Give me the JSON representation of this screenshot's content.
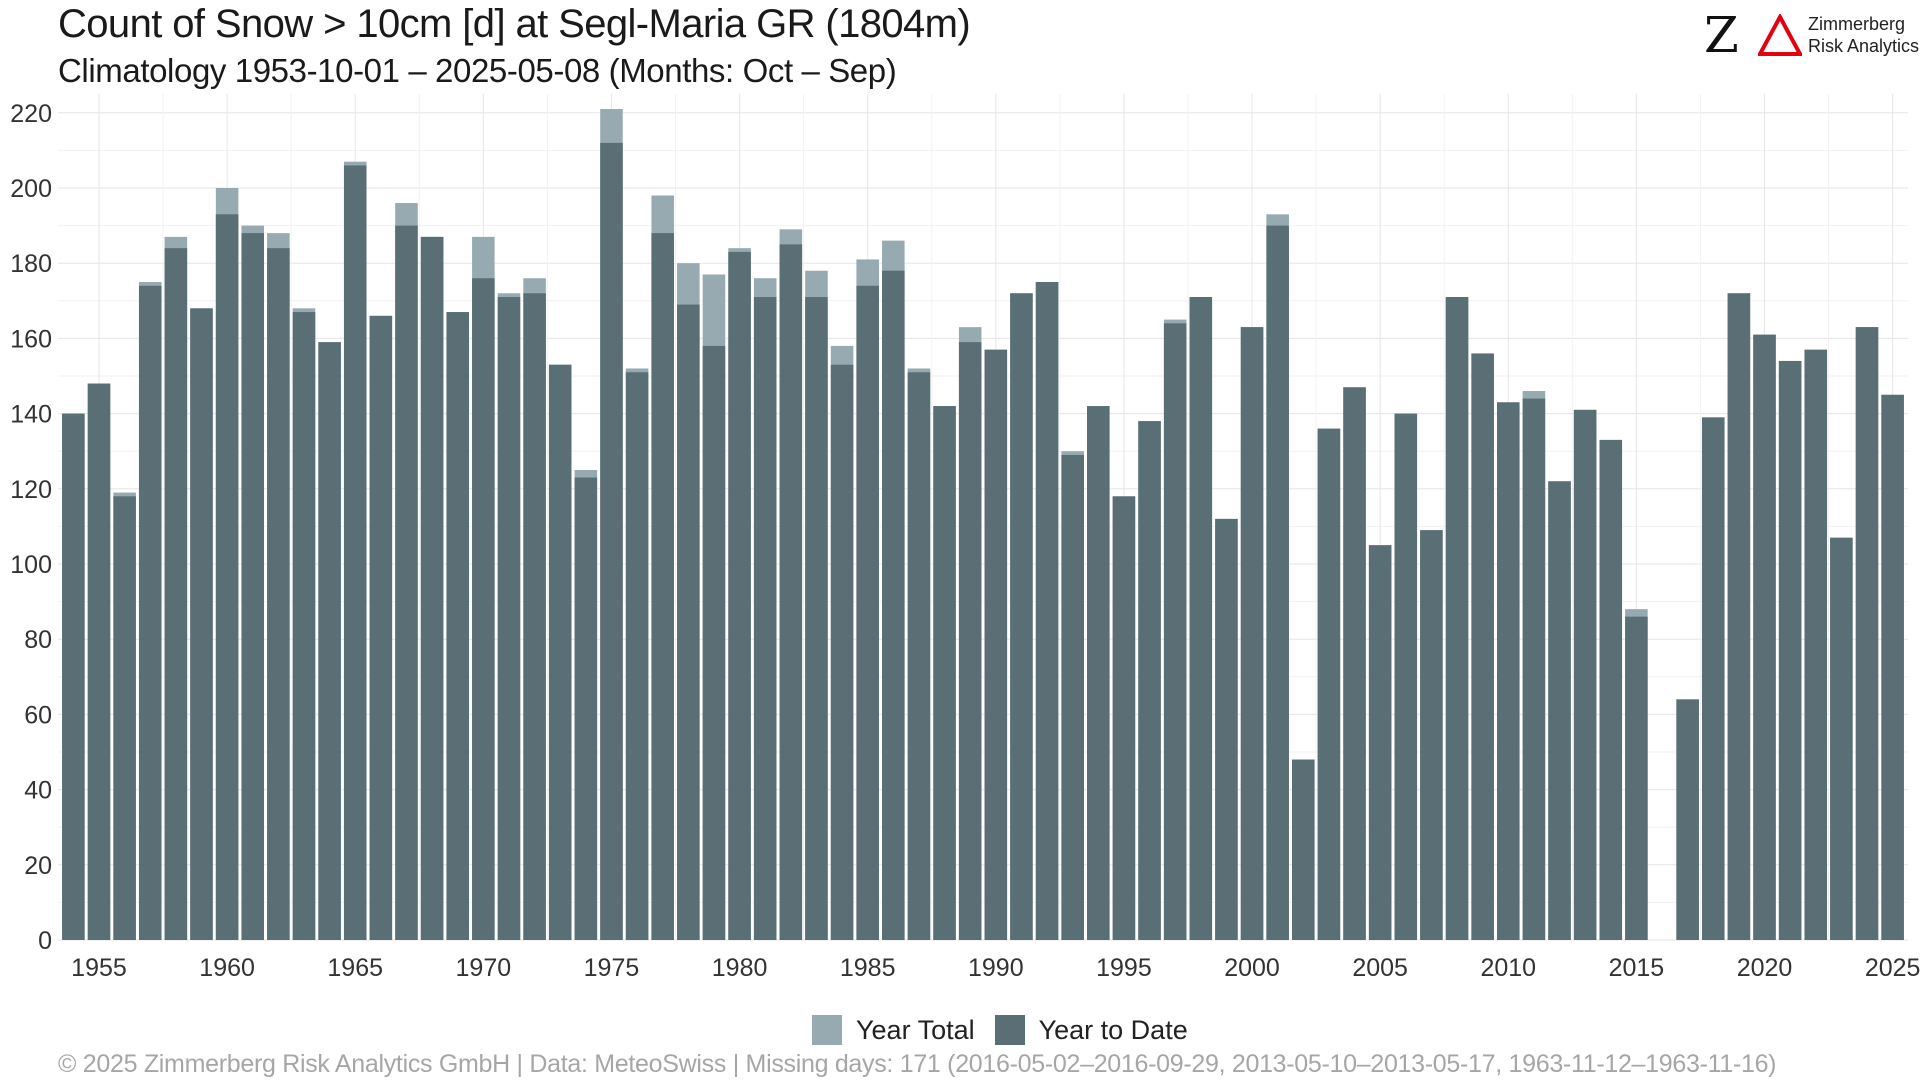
{
  "header": {
    "title": "Count of Snow > 10cm [d] at Segl-Maria  GR (1804m)",
    "subtitle": "Climatology 1953-10-01 – 2025-05-08 (Months: Oct – Sep)"
  },
  "logo": {
    "mark": "Z",
    "line1": "Zimmerberg",
    "line2": "Risk Analytics",
    "accent_color": "#e3000f"
  },
  "legend": {
    "items": [
      {
        "label": "Year Total",
        "color": "#97aab1"
      },
      {
        "label": "Year to Date",
        "color": "#596e75"
      }
    ]
  },
  "footer": {
    "text": "©  2025 Zimmerberg Risk Analytics GmbH | Data: MeteoSwiss | Missing days: 171 (2016-05-02–2016-09-29, 2013-05-10–2013-05-17, 1963-11-12–1963-11-16)"
  },
  "chart_data": {
    "type": "bar",
    "overlay": true,
    "x": [
      1954,
      1955,
      1956,
      1957,
      1958,
      1959,
      1960,
      1961,
      1962,
      1963,
      1964,
      1965,
      1966,
      1967,
      1968,
      1969,
      1970,
      1971,
      1972,
      1973,
      1974,
      1975,
      1976,
      1977,
      1978,
      1979,
      1980,
      1981,
      1982,
      1983,
      1984,
      1985,
      1986,
      1987,
      1988,
      1989,
      1990,
      1991,
      1992,
      1993,
      1994,
      1995,
      1996,
      1997,
      1998,
      1999,
      2000,
      2001,
      2002,
      2003,
      2004,
      2005,
      2006,
      2007,
      2008,
      2009,
      2010,
      2011,
      2012,
      2013,
      2014,
      2015,
      2016,
      2017,
      2018,
      2019,
      2020,
      2021,
      2022,
      2023,
      2024,
      2025
    ],
    "series": [
      {
        "name": "Year Total",
        "color": "#97aab1",
        "values": [
          140,
          148,
          119,
          175,
          187,
          168,
          200,
          190,
          188,
          168,
          159,
          207,
          166,
          196,
          187,
          167,
          187,
          172,
          176,
          153,
          125,
          221,
          152,
          198,
          180,
          177,
          184,
          176,
          189,
          178,
          158,
          181,
          186,
          152,
          142,
          163,
          157,
          172,
          175,
          130,
          142,
          118,
          138,
          165,
          171,
          112,
          163,
          193,
          48,
          136,
          147,
          105,
          140,
          109,
          171,
          156,
          143,
          146,
          122,
          141,
          133,
          88,
          null,
          64,
          139,
          172,
          161,
          154,
          157,
          107,
          163,
          145
        ]
      },
      {
        "name": "Year to Date",
        "color": "#596e75",
        "values": [
          140,
          148,
          118,
          174,
          184,
          168,
          193,
          188,
          184,
          167,
          159,
          206,
          166,
          190,
          187,
          167,
          176,
          171,
          172,
          153,
          123,
          212,
          151,
          188,
          169,
          158,
          183,
          171,
          185,
          171,
          153,
          174,
          178,
          151,
          142,
          159,
          157,
          172,
          175,
          129,
          142,
          118,
          138,
          164,
          171,
          112,
          163,
          190,
          48,
          136,
          147,
          105,
          140,
          109,
          171,
          156,
          143,
          144,
          122,
          141,
          133,
          86,
          null,
          64,
          139,
          172,
          161,
          154,
          157,
          107,
          163,
          145
        ]
      }
    ],
    "xticks": [
      1955,
      1960,
      1965,
      1970,
      1975,
      1980,
      1985,
      1990,
      1995,
      2000,
      2005,
      2010,
      2015,
      2020,
      2025
    ],
    "yticks": [
      0,
      20,
      40,
      60,
      80,
      100,
      120,
      140,
      160,
      180,
      200,
      220
    ],
    "ylim": [
      0,
      225
    ],
    "xlim": [
      1953.4,
      2025.6
    ],
    "grid": true,
    "legend_position": "bottom"
  }
}
